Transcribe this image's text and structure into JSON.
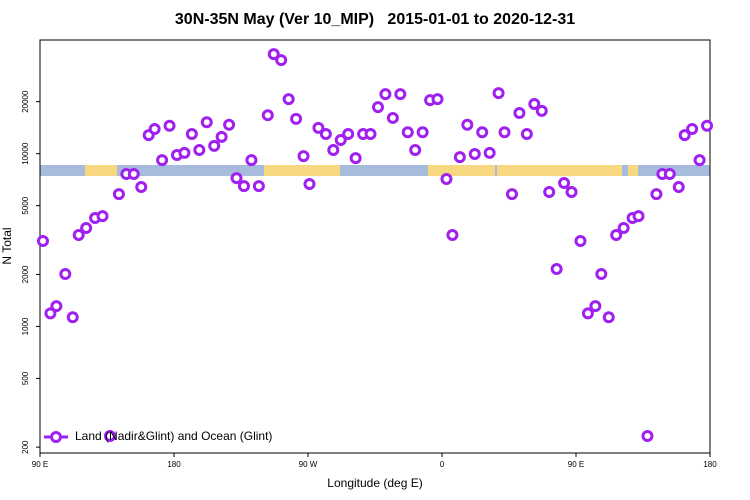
{
  "chart_data": {
    "type": "scatter",
    "title": "30N-35N May (Ver 10_MIP)   2015-01-01 to 2020-12-31",
    "x_label": "Longitude (deg E)",
    "y_label": "N Total",
    "log_y": true,
    "legend": "bottom-left",
    "xlim": [
      90,
      540
    ],
    "xticks": [
      {
        "value": 90,
        "label": "90 E"
      },
      180,
      {
        "value": 270,
        "label": "90 W"
      },
      {
        "value": 360,
        "label": "0"
      },
      {
        "value": 450,
        "label": "90 E"
      },
      {
        "value": 540,
        "label": "180"
      }
    ],
    "ylim": [
      185,
      45500
    ],
    "yticks": [
      200,
      500,
      1000,
      2000,
      5000,
      10000,
      20000
    ],
    "series": [
      {
        "name": "Land (Nadir&Glint) and Ocean (Glint)",
        "color": "#a020f0",
        "x": [
          92,
          97,
          101,
          107,
          112,
          116,
          121,
          127,
          132,
          137,
          143,
          148,
          153,
          158,
          163,
          167,
          172,
          177,
          182,
          187,
          192,
          197,
          202,
          207,
          212,
          217,
          222,
          227,
          232,
          237,
          243,
          247,
          252,
          257,
          262,
          267,
          271,
          277,
          282,
          287,
          292,
          297,
          302,
          307,
          312,
          317,
          322,
          327,
          332,
          337,
          342,
          347,
          352,
          357,
          363,
          367,
          372,
          377,
          382,
          387,
          392,
          398,
          402,
          407,
          412,
          417,
          422,
          427,
          432,
          437,
          442,
          447,
          453,
          458,
          463,
          467,
          472,
          477,
          482,
          488,
          492,
          498,
          504,
          508,
          513,
          519,
          523,
          528,
          533,
          538
        ],
        "values": [
          3120,
          1190,
          1310,
          2010,
          1130,
          3380,
          3710,
          4240,
          4350,
          232,
          5830,
          7620,
          7620,
          6410,
          12800,
          13900,
          9180,
          14500,
          9820,
          10100,
          13000,
          10500,
          15200,
          11100,
          12500,
          14700,
          7220,
          6490,
          9180,
          6490,
          16700,
          37700,
          34800,
          20700,
          15900,
          9680,
          6670,
          14100,
          13000,
          10500,
          12000,
          13000,
          9420,
          13000,
          13000,
          18600,
          22100,
          16100,
          22100,
          13300,
          10500,
          13300,
          20400,
          20700,
          7130,
          3380,
          9550,
          14700,
          9950,
          13300,
          10100,
          22400,
          13300,
          5830,
          17200,
          13000,
          19400,
          17700,
          6000,
          2150,
          6760,
          6000,
          3120,
          1190,
          1310,
          2010,
          1130,
          3380,
          3710,
          4240,
          4350,
          232,
          5830,
          7620,
          7620,
          6410,
          12800,
          13900,
          9180,
          14500
        ]
      }
    ]
  }
}
